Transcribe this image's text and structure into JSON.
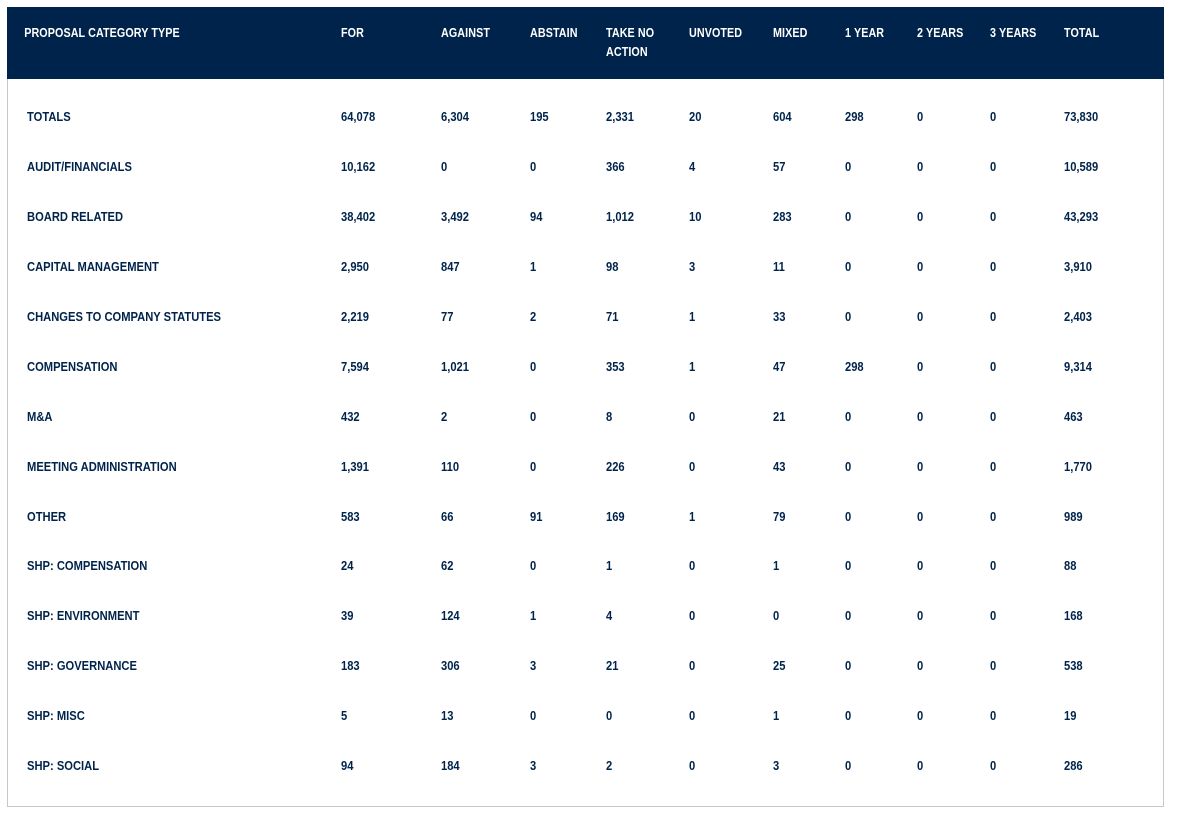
{
  "table": {
    "headers": [
      "PROPOSAL CATEGORY TYPE",
      "FOR",
      "AGAINST",
      "ABSTAIN",
      "TAKE NO ACTION",
      "UNVOTED",
      "MIXED",
      "1 YEAR",
      "2 YEARS",
      "3 YEARS",
      "TOTAL"
    ],
    "header_colors": {
      "background": "#00234b",
      "text": "#ffffff",
      "body_text": "#00234b"
    },
    "rows": [
      [
        "TOTALS",
        "64,078",
        "6,304",
        "195",
        "2,331",
        "20",
        "604",
        "298",
        "0",
        "0",
        "73,830"
      ],
      [
        "AUDIT/FINANCIALS",
        "10,162",
        "0",
        "0",
        "366",
        "4",
        "57",
        "0",
        "0",
        "0",
        "10,589"
      ],
      [
        "BOARD RELATED",
        "38,402",
        "3,492",
        "94",
        "1,012",
        "10",
        "283",
        "0",
        "0",
        "0",
        "43,293"
      ],
      [
        "CAPITAL MANAGEMENT",
        "2,950",
        "847",
        "1",
        "98",
        "3",
        "11",
        "0",
        "0",
        "0",
        "3,910"
      ],
      [
        "CHANGES TO COMPANY STATUTES",
        "2,219",
        "77",
        "2",
        "71",
        "1",
        "33",
        "0",
        "0",
        "0",
        "2,403"
      ],
      [
        "COMPENSATION",
        "7,594",
        "1,021",
        "0",
        "353",
        "1",
        "47",
        "298",
        "0",
        "0",
        "9,314"
      ],
      [
        "M&A",
        "432",
        "2",
        "0",
        "8",
        "0",
        "21",
        "0",
        "0",
        "0",
        "463"
      ],
      [
        "MEETING ADMINISTRATION",
        "1,391",
        "110",
        "0",
        "226",
        "0",
        "43",
        "0",
        "0",
        "0",
        "1,770"
      ],
      [
        "OTHER",
        "583",
        "66",
        "91",
        "169",
        "1",
        "79",
        "0",
        "0",
        "0",
        "989"
      ],
      [
        "SHP: COMPENSATION",
        "24",
        "62",
        "0",
        "1",
        "0",
        "1",
        "0",
        "0",
        "0",
        "88"
      ],
      [
        "SHP: ENVIRONMENT",
        "39",
        "124",
        "1",
        "4",
        "0",
        "0",
        "0",
        "0",
        "0",
        "168"
      ],
      [
        "SHP: GOVERNANCE",
        "183",
        "306",
        "3",
        "21",
        "0",
        "25",
        "0",
        "0",
        "0",
        "538"
      ],
      [
        "SHP: MISC",
        "5",
        "13",
        "0",
        "0",
        "0",
        "1",
        "0",
        "0",
        "0",
        "19"
      ],
      [
        "SHP: SOCIAL",
        "94",
        "184",
        "3",
        "2",
        "0",
        "3",
        "0",
        "0",
        "0",
        "286"
      ]
    ]
  }
}
